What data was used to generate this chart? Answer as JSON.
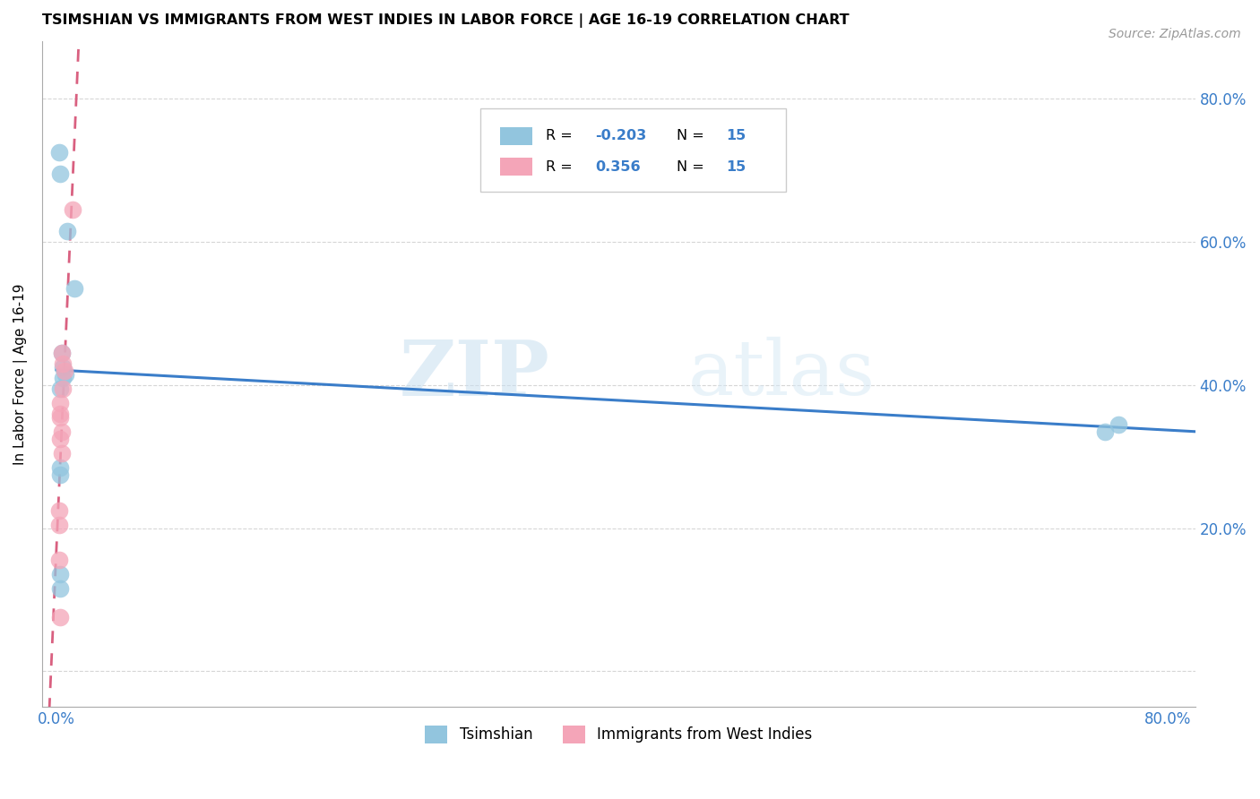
{
  "title": "TSIMSHIAN VS IMMIGRANTS FROM WEST INDIES IN LABOR FORCE | AGE 16-19 CORRELATION CHART",
  "source": "Source: ZipAtlas.com",
  "ylabel": "In Labor Force | Age 16-19",
  "xlim": [
    -0.01,
    0.82
  ],
  "ylim": [
    -0.05,
    0.88
  ],
  "r_tsimshian": -0.203,
  "n_tsimshian": 15,
  "r_west_indies": 0.356,
  "n_west_indies": 15,
  "color_tsimshian": "#92c5de",
  "color_west_indies": "#f4a5b8",
  "color_tsimshian_line": "#3a7dc9",
  "color_west_indies_line": "#d96080",
  "watermark_zip": "ZIP",
  "watermark_atlas": "atlas",
  "tsimshian_x": [
    0.002,
    0.003,
    0.008,
    0.013,
    0.004,
    0.005,
    0.007,
    0.005,
    0.003,
    0.003,
    0.003,
    0.003,
    0.003,
    0.755,
    0.765
  ],
  "tsimshian_y": [
    0.725,
    0.695,
    0.615,
    0.535,
    0.445,
    0.425,
    0.415,
    0.41,
    0.395,
    0.285,
    0.275,
    0.135,
    0.115,
    0.335,
    0.345
  ],
  "west_indies_x": [
    0.012,
    0.004,
    0.005,
    0.006,
    0.005,
    0.003,
    0.003,
    0.003,
    0.004,
    0.003,
    0.004,
    0.002,
    0.002,
    0.002,
    0.003
  ],
  "west_indies_y": [
    0.645,
    0.445,
    0.43,
    0.42,
    0.395,
    0.375,
    0.36,
    0.355,
    0.335,
    0.325,
    0.305,
    0.225,
    0.205,
    0.155,
    0.075
  ],
  "background_color": "#ffffff",
  "grid_color": "#cccccc",
  "tick_color": "#3a7dc9",
  "spine_color": "#aaaaaa"
}
